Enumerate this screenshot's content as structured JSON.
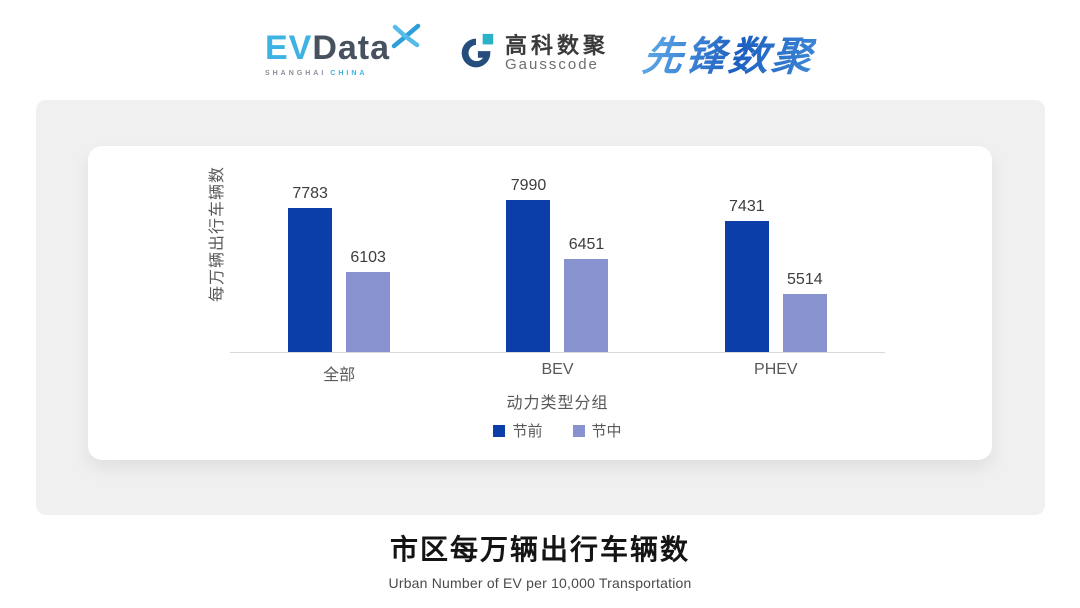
{
  "header": {
    "evdata": {
      "ev": "EV",
      "data": "Data",
      "sub_left": "SHANGHAI",
      "sub_right": "CHINA"
    },
    "gausscode": {
      "cn": "高科数聚",
      "en": "Gausscode"
    },
    "xianfeng": {
      "text": "先锋数聚"
    }
  },
  "chart_data": {
    "type": "bar",
    "categories": [
      "全部",
      "BEV",
      "PHEV"
    ],
    "series": [
      {
        "name": "节前",
        "color": "#0b3ea8",
        "values": [
          7783,
          7990,
          7431
        ]
      },
      {
        "name": "节中",
        "color": "#8792ce",
        "values": [
          6103,
          6451,
          5514
        ]
      }
    ],
    "ylabel": "每万辆出行车辆数",
    "xlabel": "动力类型分组",
    "ylim": [
      4000,
      8200
    ],
    "grid": false,
    "legend_position": "bottom",
    "value_labels": true
  },
  "footer": {
    "title": "市区每万辆出行车辆数",
    "subtitle": "Urban Number of EV per 10,000 Transportation"
  },
  "colors": {
    "pre_holiday_bar": "#0b3ea8",
    "mid_holiday_bar": "#8792ce",
    "panel_bg": "#f0f0f0",
    "axis_line": "#d9d9d9",
    "label_text": "#595959"
  }
}
